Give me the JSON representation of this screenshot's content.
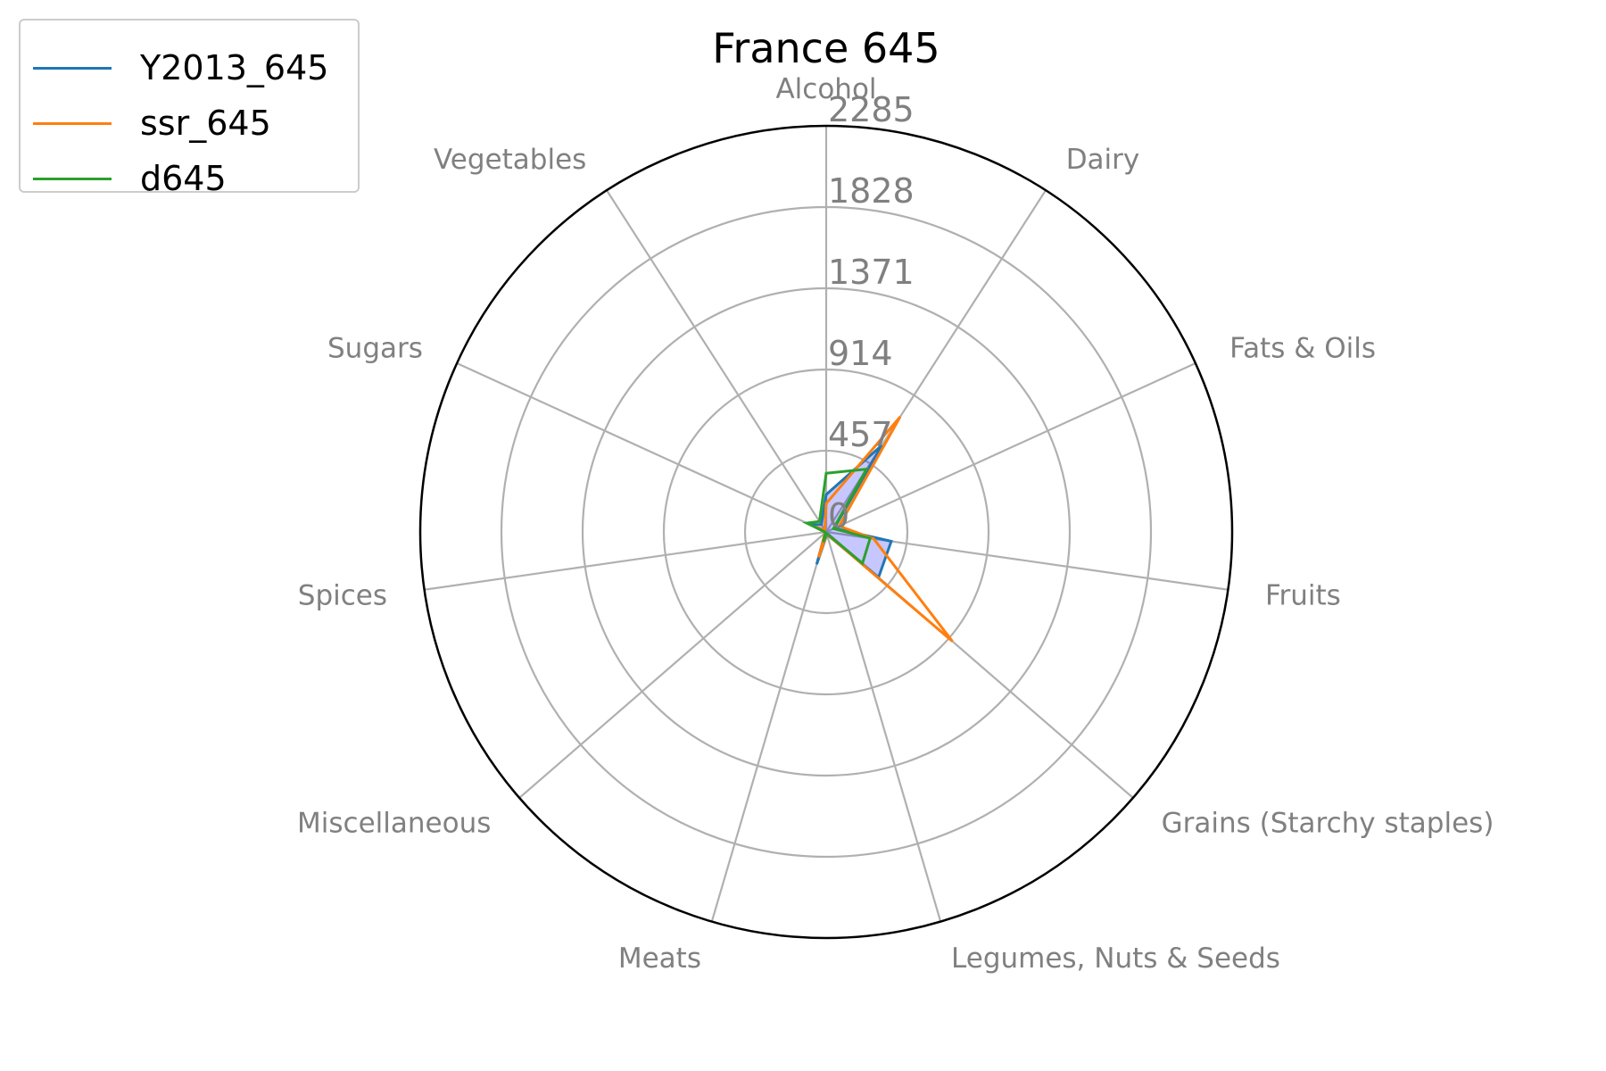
{
  "chart_data": {
    "type": "radar",
    "title": "France 645",
    "categories": [
      "Alcohol",
      "Dairy",
      "Fats & Oils",
      "Fruits",
      "Grains (Starchy staples)",
      "Legumes, Nuts & Seeds",
      "Meats",
      "Miscellaneous",
      "Spices",
      "Sugars",
      "Vegetables"
    ],
    "rticks": [
      "0",
      "457",
      "914",
      "1371",
      "1828",
      "2285"
    ],
    "rtick_values": [
      0,
      457,
      914,
      1371,
      1828,
      2285
    ],
    "rmax": 2285,
    "grid": true,
    "legend_position": "top-left",
    "series": [
      {
        "name": "Y2013_645",
        "color": "#1f77b4",
        "values": [
          210,
          580,
          50,
          370,
          390,
          15,
          190,
          8,
          8,
          100,
          50
        ]
      },
      {
        "name": "ssr_645",
        "color": "#ff7f0e",
        "values": [
          160,
          770,
          80,
          270,
          940,
          12,
          150,
          8,
          8,
          70,
          15
        ]
      },
      {
        "name": "d645",
        "color": "#2ca02c",
        "values": [
          330,
          420,
          45,
          250,
          270,
          8,
          60,
          5,
          5,
          120,
          70
        ]
      }
    ],
    "fill_color": "#0000ff"
  }
}
